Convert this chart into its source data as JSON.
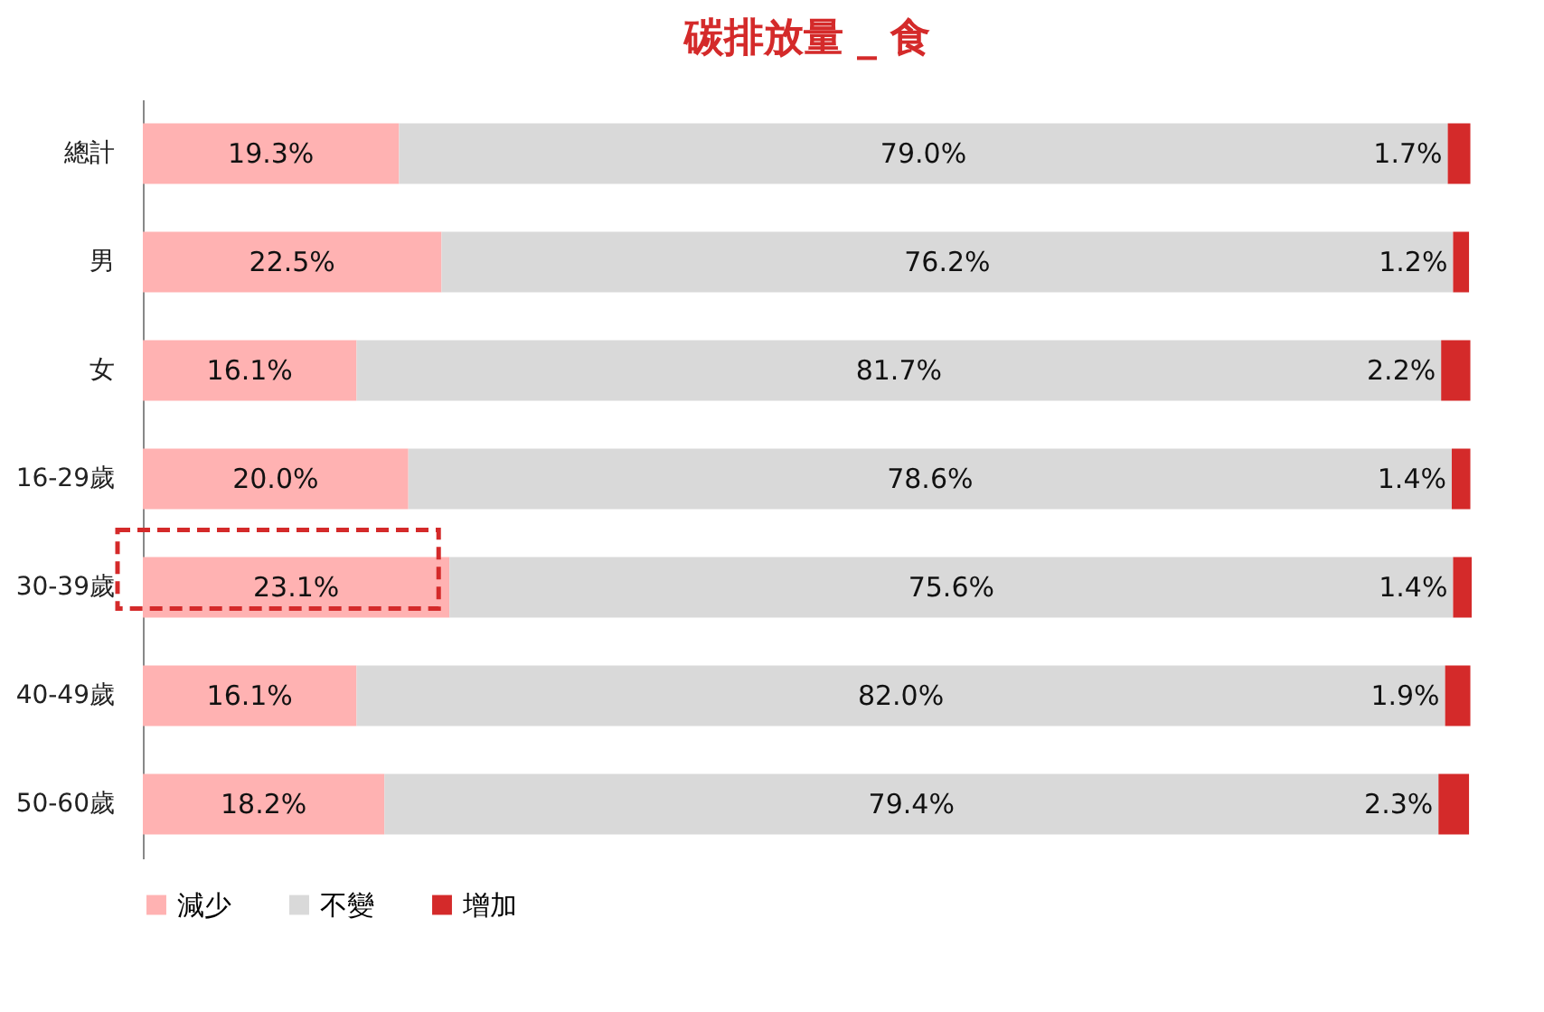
{
  "chart_data": {
    "type": "bar",
    "title": "碳排放量 _ 食",
    "orientation": "horizontal",
    "stacked": true,
    "tick_labels": "y",
    "grid": false,
    "legend": "bottom",
    "categories": [
      "總計",
      "男",
      "女",
      "16-29歲",
      "30-39歲",
      "40-49歲",
      "50-60歲"
    ],
    "series": [
      {
        "name": "減少",
        "color": "#ffb2b2",
        "values": [
          19.3,
          22.5,
          16.1,
          20.0,
          23.1,
          16.1,
          18.2
        ],
        "value_labels": [
          "19.3%",
          "22.5%",
          "16.1%",
          "20.0%",
          "23.1%",
          "16.1%",
          "18.2%"
        ]
      },
      {
        "name": "不變",
        "color": "#d9d9d9",
        "values": [
          79.0,
          76.2,
          81.7,
          78.6,
          75.6,
          82.0,
          79.4
        ],
        "value_labels": [
          "79.0%",
          "76.2%",
          "81.7%",
          "78.6%",
          "75.6%",
          "82.0%",
          "79.4%"
        ]
      },
      {
        "name": "增加",
        "color": "#d42a2a",
        "values": [
          1.7,
          1.2,
          2.2,
          1.4,
          1.4,
          1.9,
          2.3
        ],
        "value_labels": [
          "1.7%",
          "1.2%",
          "2.2%",
          "1.4%",
          "1.4%",
          "1.9%",
          "2.3%"
        ]
      }
    ]
  }
}
